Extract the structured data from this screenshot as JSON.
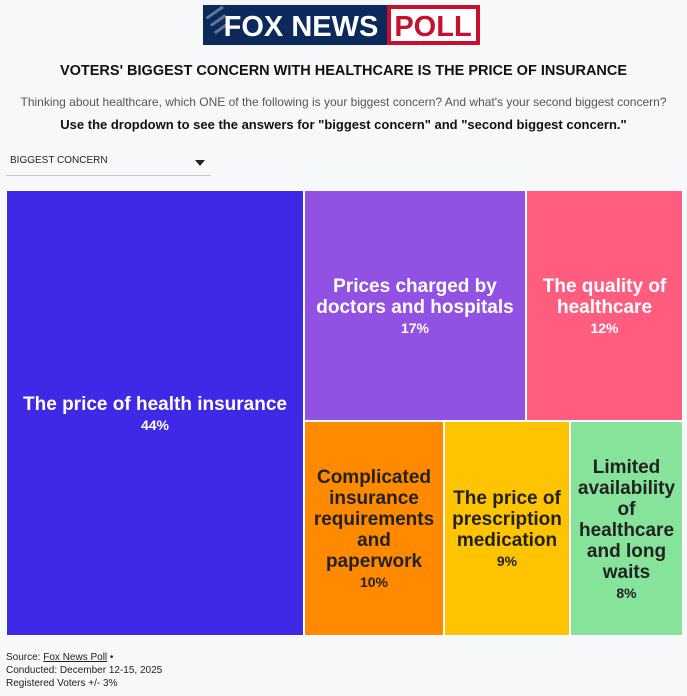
{
  "logo": {
    "part1": "FOX NEWS",
    "part2": "POLL"
  },
  "header": {
    "title": "VOTERS' BIGGEST CONCERN WITH HEALTHCARE IS THE PRICE OF INSURANCE",
    "subtitle": "Thinking about healthcare, which ONE of the following is your biggest concern? And what's your second biggest concern?",
    "instruction": "Use the dropdown to see the answers for \"biggest concern\" and \"second biggest concern.\""
  },
  "dropdown": {
    "selected": "BIGGEST CONCERN"
  },
  "chart_data": {
    "type": "treemap",
    "unit": "%",
    "items": [
      {
        "label": "The price of health insurance",
        "value": 44,
        "value_label": "44%",
        "color": "#3f28e6",
        "text_color": "#ffffff"
      },
      {
        "label": "Prices charged by doctors and hospitals",
        "value": 17,
        "value_label": "17%",
        "color": "#9152e3",
        "text_color": "#ffffff"
      },
      {
        "label": "The quality of healthcare",
        "value": 12,
        "value_label": "12%",
        "color": "#ff5d80",
        "text_color": "#ffffff"
      },
      {
        "label": "Complicated insurance requirements and paperwork",
        "value": 10,
        "value_label": "10%",
        "color": "#ff8a00",
        "text_color": "#222222"
      },
      {
        "label": "The price of prescription medication",
        "value": 9,
        "value_label": "9%",
        "color": "#ffc400",
        "text_color": "#222222"
      },
      {
        "label": "Limited availability of healthcare and long waits",
        "value": 8,
        "value_label": "8%",
        "color": "#86e39a",
        "text_color": "#222222"
      }
    ]
  },
  "footer": {
    "source_prefix": "Source: ",
    "source_link": "Fox News Poll",
    "source_suffix": " •",
    "conducted": "Conducted: December 12-15, 2025",
    "sample": "Registered Voters +/- 3%"
  }
}
